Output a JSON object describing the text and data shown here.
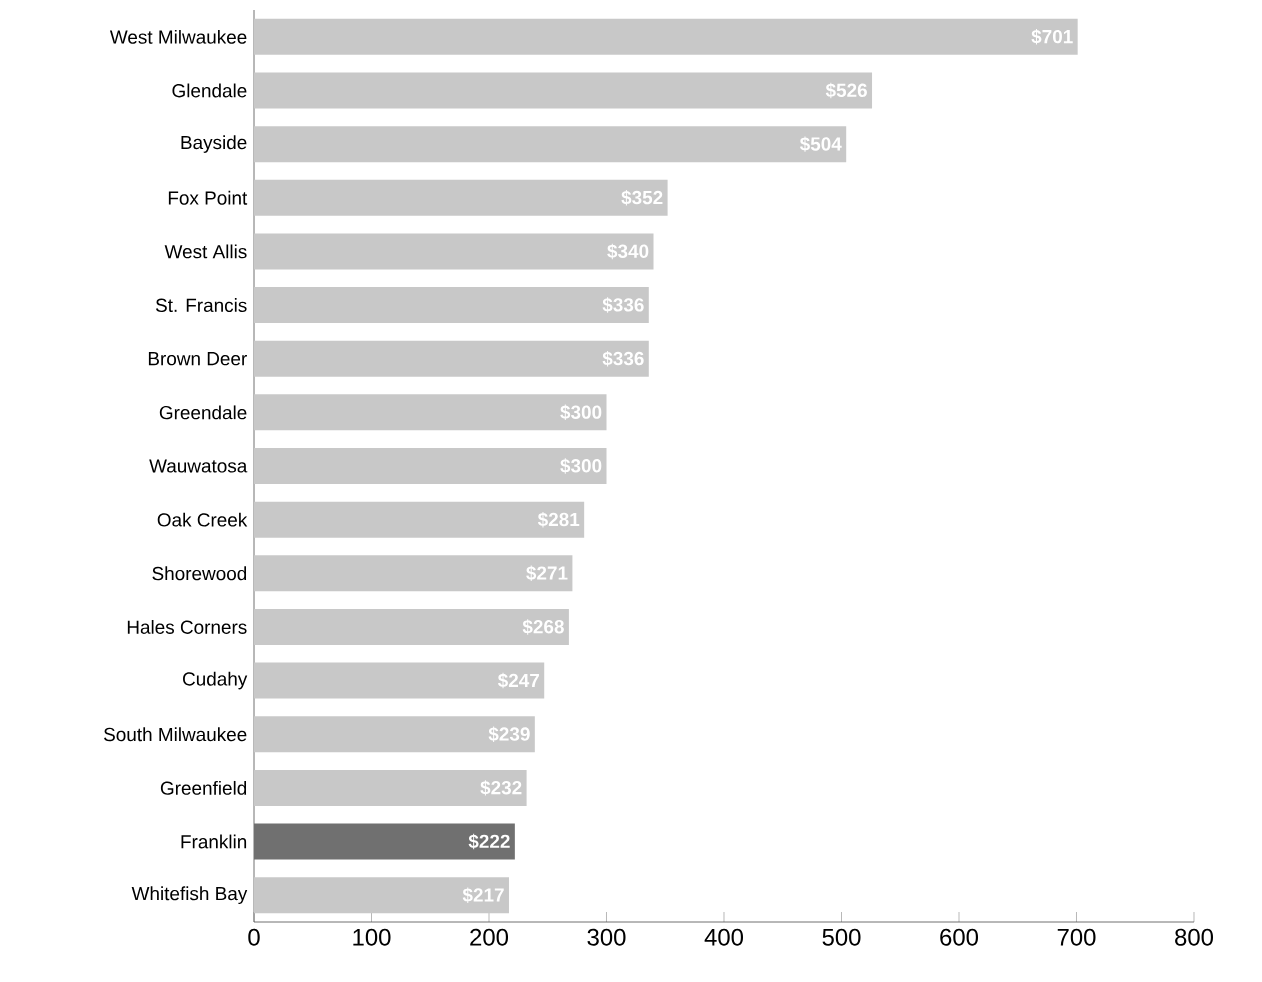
{
  "chart_data": {
    "type": "bar",
    "orientation": "horizontal",
    "categories": [
      "West Milwaukee",
      "Glendale",
      "Bayside",
      "Fox Point",
      "West Allis",
      "St. Francis",
      "Brown Deer",
      "Greendale",
      "Wauwatosa",
      "Oak Creek",
      "Shorewood",
      "Hales Corners",
      "Cudahy",
      "South Milwaukee",
      "Greenfield",
      "Franklin",
      "Whitefish Bay"
    ],
    "values": [
      701,
      526,
      504,
      352,
      340,
      336,
      336,
      300,
      300,
      281,
      271,
      268,
      247,
      239,
      232,
      222,
      217
    ],
    "value_labels": [
      "$701",
      "$526",
      "$504",
      "$352",
      "$340",
      "$336",
      "$336",
      "$300",
      "$300",
      "$281",
      "$271",
      "$268",
      "$247",
      "$239",
      "$232",
      "$222",
      "$217"
    ],
    "colors": [
      "#c8c8c8",
      "#c8c8c8",
      "#c8c8c8",
      "#c8c8c8",
      "#c8c8c8",
      "#c8c8c8",
      "#c8c8c8",
      "#c8c8c8",
      "#c8c8c8",
      "#c8c8c8",
      "#c8c8c8",
      "#c8c8c8",
      "#c8c8c8",
      "#c8c8c8",
      "#c8c8c8",
      "#707070",
      "#c8c8c8"
    ],
    "xlim": [
      0,
      800
    ],
    "xticks": [
      0,
      100,
      200,
      300,
      400,
      500,
      600,
      700,
      800
    ],
    "grid": false
  }
}
